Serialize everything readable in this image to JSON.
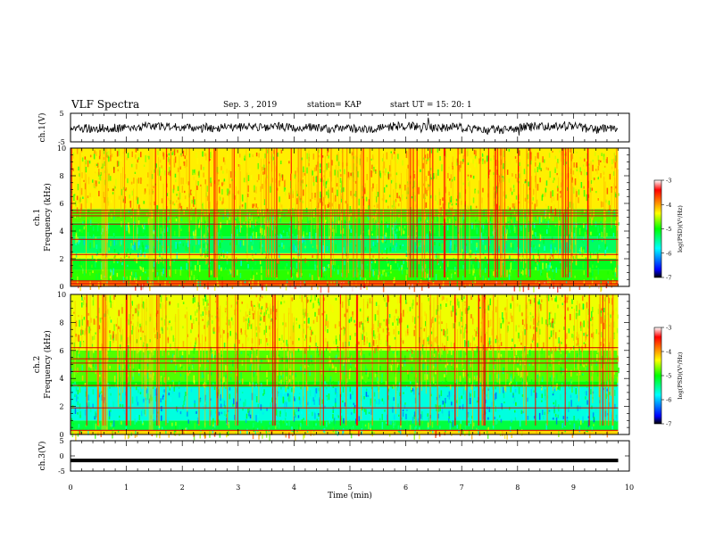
{
  "header": {
    "title": "VLF Spectra",
    "date": "Sep. 3  , 2019",
    "station": "station= KAP",
    "start": "start  UT  =   15: 20: 1"
  },
  "chart_data": [
    {
      "type": "line",
      "panel": "ch1-waveform",
      "ylabel": "ch.1(V)",
      "ylim": [
        -5,
        5
      ],
      "yticks": [
        "5",
        "-5"
      ],
      "xlim": [
        0,
        10
      ],
      "data_extent_min": 9.8,
      "series": [
        {
          "color": "#000000",
          "noise_amplitude_v": 2.5
        }
      ]
    },
    {
      "type": "heatmap",
      "panel": "ch1-spectrogram",
      "ylabel_top": "ch.1",
      "ylabel": "Frequency  (kHz)",
      "ylim": [
        0,
        10
      ],
      "yticks": [
        "0",
        "2",
        "4",
        "6",
        "8",
        "10"
      ],
      "xlim": [
        0,
        10
      ],
      "data_extent_min": 9.8,
      "colorbar": {
        "label": "log(PSD)(V²/Hz)",
        "range": [
          -7,
          -3
        ],
        "ticks": [
          "-3",
          "-4",
          "-5",
          "-6",
          "-7"
        ],
        "colors": [
          "#000000",
          "#0000ff",
          "#00ffff",
          "#00ff00",
          "#ffff00",
          "#ff8000",
          "#ff0000",
          "#ffffff"
        ]
      },
      "bands": [
        {
          "f_low_khz": 0.0,
          "f_high_khz": 0.4,
          "level": -3.8
        },
        {
          "f_low_khz": 0.4,
          "f_high_khz": 1.2,
          "level": -4.9
        },
        {
          "f_low_khz": 1.2,
          "f_high_khz": 2.0,
          "level": -5.1
        },
        {
          "f_low_khz": 2.0,
          "f_high_khz": 2.4,
          "level": -4.4
        },
        {
          "f_low_khz": 2.4,
          "f_high_khz": 3.6,
          "level": -5.3
        },
        {
          "f_low_khz": 3.6,
          "f_high_khz": 4.6,
          "level": -5.1
        },
        {
          "f_low_khz": 4.6,
          "f_high_khz": 5.6,
          "level": -4.8
        },
        {
          "f_low_khz": 5.6,
          "f_high_khz": 10.0,
          "level": -4.3
        }
      ],
      "lines_khz": [
        0.2,
        0.4,
        1.9,
        2.3,
        3.4,
        4.5,
        5.1,
        5.3,
        5.5
      ]
    },
    {
      "type": "heatmap",
      "panel": "ch2-spectrogram",
      "ylabel_top": "ch.2",
      "ylabel": "Frequency  (kHz)",
      "ylim": [
        0,
        10
      ],
      "yticks": [
        "0",
        "2",
        "4",
        "6",
        "8",
        "10"
      ],
      "xlim": [
        0,
        10
      ],
      "data_extent_min": 9.8,
      "colorbar": {
        "label": "log(PSD)(V²/Hz)",
        "range": [
          -7,
          -3
        ],
        "ticks": [
          "-3",
          "-4",
          "-5",
          "-6",
          "-7"
        ],
        "colors": [
          "#000000",
          "#0000ff",
          "#00ffff",
          "#00ff00",
          "#ffff00",
          "#ff8000",
          "#ff0000",
          "#ffffff"
        ]
      },
      "bands": [
        {
          "f_low_khz": 0.0,
          "f_high_khz": 0.3,
          "level": -4.2
        },
        {
          "f_low_khz": 0.3,
          "f_high_khz": 1.0,
          "level": -5.2
        },
        {
          "f_low_khz": 1.0,
          "f_high_khz": 3.4,
          "level": -5.7
        },
        {
          "f_low_khz": 3.4,
          "f_high_khz": 3.8,
          "level": -5.0
        },
        {
          "f_low_khz": 3.8,
          "f_high_khz": 6.0,
          "level": -4.8
        },
        {
          "f_low_khz": 6.0,
          "f_high_khz": 10.0,
          "level": -4.4
        }
      ],
      "lines_khz": [
        0.3,
        1.9,
        3.5,
        4.5,
        5.1,
        5.4,
        6.2
      ]
    },
    {
      "type": "line",
      "panel": "ch3-waveform",
      "ylabel": "ch.3(V)",
      "ylim": [
        -5,
        5
      ],
      "yticks": [
        "5",
        "0",
        "-5"
      ],
      "xlim": [
        0,
        10
      ],
      "xlabel": "Time  (min)",
      "xticks": [
        "0",
        "1",
        "2",
        "3",
        "4",
        "5",
        "6",
        "7",
        "8",
        "9",
        "10"
      ],
      "data_extent_min": 9.8,
      "series": [
        {
          "color": "#000000",
          "constant_v": -1.5
        }
      ]
    }
  ]
}
